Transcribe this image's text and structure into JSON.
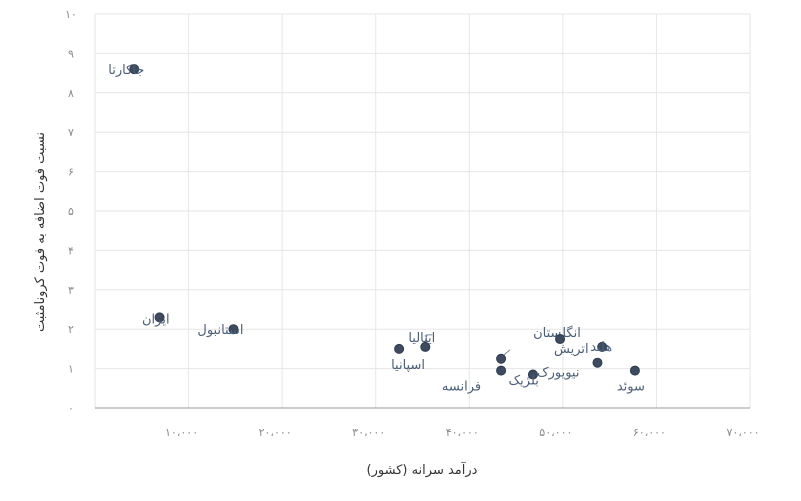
{
  "chart_data": {
    "type": "scatter",
    "xlabel": "درآمد سرانه (کشور)",
    "ylabel": "نسبت فوت اضافه به فوت کرونامثبت",
    "xlim": [
      0,
      70000
    ],
    "ylim": [
      0,
      10
    ],
    "x_ticks": [
      {
        "value": 10000,
        "label": "۱۰،۰۰۰"
      },
      {
        "value": 20000,
        "label": "۲۰،۰۰۰"
      },
      {
        "value": 30000,
        "label": "۳۰،۰۰۰"
      },
      {
        "value": 40000,
        "label": "۴۰،۰۰۰"
      },
      {
        "value": 50000,
        "label": "۵۰،۰۰۰"
      },
      {
        "value": 60000,
        "label": "۶۰،۰۰۰"
      },
      {
        "value": 70000,
        "label": "۷۰،۰۰۰"
      }
    ],
    "y_ticks": [
      {
        "value": 0,
        "label": "۰"
      },
      {
        "value": 1,
        "label": "۱"
      },
      {
        "value": 2,
        "label": "۲"
      },
      {
        "value": 3,
        "label": "۳"
      },
      {
        "value": 4,
        "label": "۴"
      },
      {
        "value": 5,
        "label": "۵"
      },
      {
        "value": 6,
        "label": "۶"
      },
      {
        "value": 7,
        "label": "۷"
      },
      {
        "value": 8,
        "label": "۸"
      },
      {
        "value": 9,
        "label": "۹"
      },
      {
        "value": 10,
        "label": "۱۰"
      }
    ],
    "grid": true,
    "points": [
      {
        "label": "جاکارتا",
        "x": 4200,
        "y": 8.6
      },
      {
        "label": "ایران",
        "x": 6900,
        "y": 2.3
      },
      {
        "label": "استانبول",
        "x": 14800,
        "y": 2.0
      },
      {
        "label": "اسپانیا",
        "x": 32500,
        "y": 1.5
      },
      {
        "label": "ایتالیا",
        "x": 35300,
        "y": 1.55
      },
      {
        "label": "انگلستان",
        "x": 43400,
        "y": 1.25
      },
      {
        "label": "فرانسه",
        "x": 43400,
        "y": 0.95
      },
      {
        "label": "بلژیک",
        "x": 46800,
        "y": 0.85
      },
      {
        "label": "اتریش",
        "x": 49700,
        "y": 1.75
      },
      {
        "label": "نیویورک",
        "x": 53700,
        "y": 1.15
      },
      {
        "label": "هلند",
        "x": 54200,
        "y": 1.55
      },
      {
        "label": "سوئد",
        "x": 57700,
        "y": 0.95
      }
    ]
  }
}
